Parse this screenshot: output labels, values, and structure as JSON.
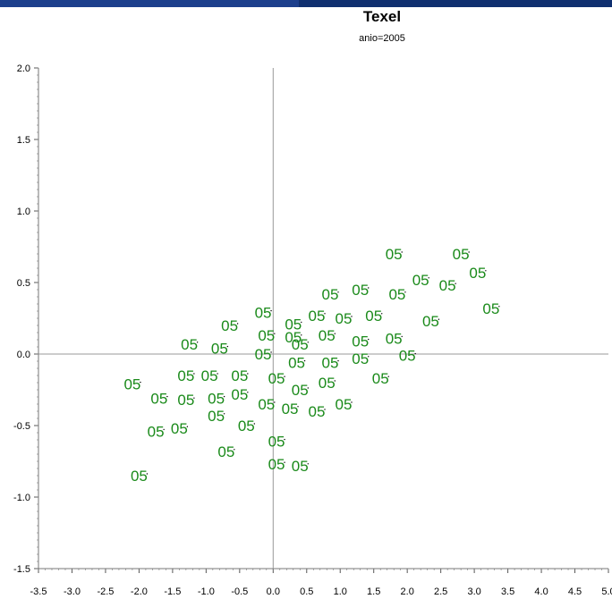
{
  "header_bar": {
    "left_color": "#1c3f8c",
    "right_color": "#0f2f6f"
  },
  "chart_data": {
    "type": "scatter",
    "title": "Texel",
    "subtitle": "anio=2005",
    "xlabel": "",
    "ylabel": "",
    "xlim": [
      -3.5,
      5.0
    ],
    "ylim": [
      -1.5,
      2.0
    ],
    "x_ticks": [
      "-3.5",
      "-3.0",
      "-2.5",
      "-2.0",
      "-1.5",
      "-1.0",
      "-0.5",
      "0.0",
      "0.5",
      "1.0",
      "1.5",
      "2.0",
      "2.5",
      "3.0",
      "3.5",
      "4.0",
      "4.5",
      "5.0"
    ],
    "y_ticks": [
      "2.0",
      "1.5",
      "1.0",
      "0.5",
      "0.0",
      "-0.5",
      "-1.0",
      "-1.5"
    ],
    "reference_lines": {
      "x": 0.0,
      "y": 0.0
    },
    "grid": false,
    "point_color": "#1a8a1a",
    "series": [
      {
        "point_label": "05",
        "points": [
          [
            1.8,
            0.7
          ],
          [
            2.8,
            0.7
          ],
          [
            3.05,
            0.57
          ],
          [
            3.25,
            0.32
          ],
          [
            2.2,
            0.52
          ],
          [
            2.6,
            0.48
          ],
          [
            1.85,
            0.42
          ],
          [
            2.35,
            0.23
          ],
          [
            1.3,
            0.45
          ],
          [
            0.85,
            0.42
          ],
          [
            0.65,
            0.27
          ],
          [
            1.05,
            0.25
          ],
          [
            1.5,
            0.27
          ],
          [
            1.8,
            0.11
          ],
          [
            1.3,
            0.09
          ],
          [
            2.0,
            -0.01
          ],
          [
            1.6,
            -0.17
          ],
          [
            1.3,
            -0.03
          ],
          [
            0.8,
            0.13
          ],
          [
            0.3,
            0.21
          ],
          [
            0.4,
            0.07
          ],
          [
            0.3,
            0.12
          ],
          [
            -0.1,
            0.13
          ],
          [
            -0.15,
            0.29
          ],
          [
            -0.65,
            0.2
          ],
          [
            -1.25,
            0.07
          ],
          [
            -0.8,
            0.04
          ],
          [
            -0.15,
            0.0
          ],
          [
            0.35,
            -0.06
          ],
          [
            0.85,
            -0.06
          ],
          [
            0.8,
            -0.2
          ],
          [
            0.4,
            -0.25
          ],
          [
            0.05,
            -0.17
          ],
          [
            -0.5,
            -0.15
          ],
          [
            -0.95,
            -0.15
          ],
          [
            -1.3,
            -0.15
          ],
          [
            -2.1,
            -0.21
          ],
          [
            -1.7,
            -0.31
          ],
          [
            -1.3,
            -0.32
          ],
          [
            -0.85,
            -0.31
          ],
          [
            -0.5,
            -0.28
          ],
          [
            -0.1,
            -0.35
          ],
          [
            0.25,
            -0.38
          ],
          [
            0.65,
            -0.4
          ],
          [
            1.05,
            -0.35
          ],
          [
            -0.85,
            -0.43
          ],
          [
            -0.4,
            -0.5
          ],
          [
            -1.75,
            -0.54
          ],
          [
            -1.4,
            -0.52
          ],
          [
            0.05,
            -0.61
          ],
          [
            -0.7,
            -0.68
          ],
          [
            0.05,
            -0.77
          ],
          [
            0.4,
            -0.78
          ],
          [
            -2.0,
            -0.85
          ]
        ]
      }
    ]
  }
}
